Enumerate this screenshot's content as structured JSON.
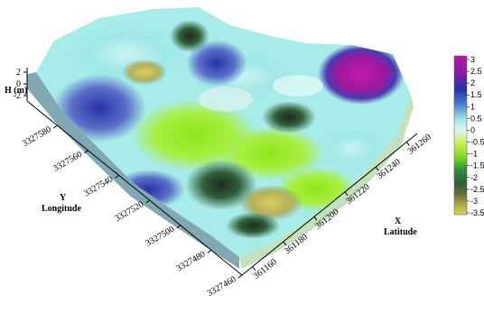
{
  "chart_data": {
    "type": "heatmap",
    "subtype": "3d-surface",
    "z_axis": {
      "label": "H (m)",
      "ticks": [
        "2",
        "0",
        "-2"
      ]
    },
    "y_axis": {
      "label_line1": "Y",
      "label_line2": "Longitude",
      "ticks": [
        "3327580",
        "3327560",
        "3327540",
        "3327520",
        "3327500",
        "3327480",
        "3327460"
      ]
    },
    "x_axis": {
      "label_line1": "X",
      "label_line2": "Latitude",
      "ticks": [
        "361160",
        "361180",
        "361200",
        "361220",
        "361240",
        "361260"
      ]
    },
    "colorbar": {
      "range": [
        -3.5,
        3
      ],
      "tick_labels": [
        "3",
        "2.5",
        "2",
        "1.5",
        "1",
        "0.5",
        "0",
        "-0.5",
        "-1",
        "-1.5",
        "-2",
        "-2.5",
        "-3",
        "-3.5"
      ],
      "colors": {
        "high": "#a4149b",
        "mid_high": "#2532a8",
        "zero": "#9fe8e6",
        "mid_low": "#9bea20",
        "low": "#2f5f38",
        "very_low": "#c8c24a"
      }
    },
    "highlights": [
      {
        "x": 361240,
        "y": 3327580,
        "value": 3
      },
      {
        "x": 361170,
        "y": 3327555,
        "value": 1.5
      },
      {
        "x": 361200,
        "y": 3327500,
        "value": -3
      },
      {
        "x": 361190,
        "y": 3327530,
        "value": -1.3
      }
    ]
  }
}
